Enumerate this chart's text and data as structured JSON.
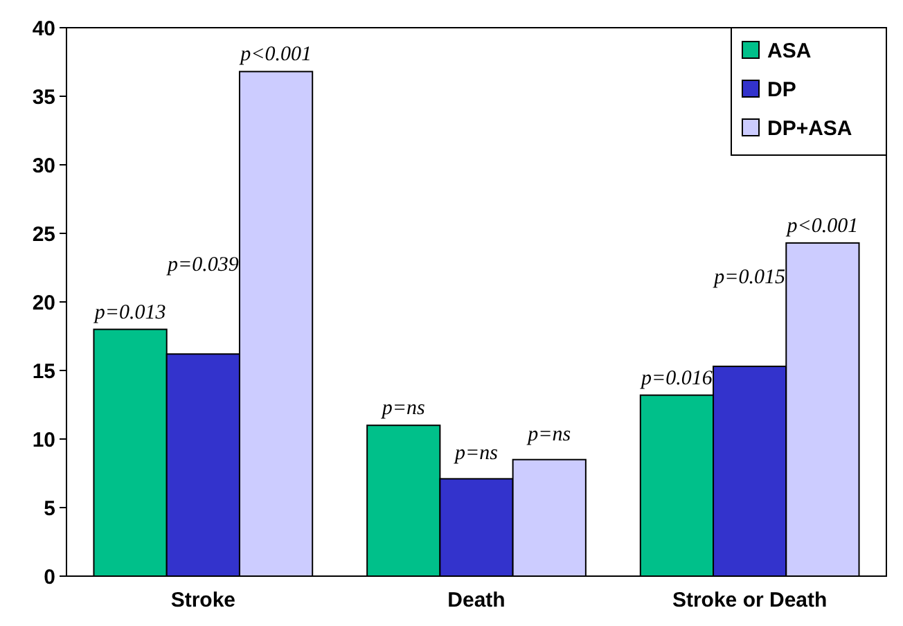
{
  "chart_data": {
    "type": "bar",
    "categories": [
      "Stroke",
      "Death",
      "Stroke or Death"
    ],
    "series": [
      {
        "name": "ASA",
        "color": "#00c08a",
        "values": [
          18,
          11,
          13.2
        ]
      },
      {
        "name": "DP",
        "color": "#3333cc",
        "values": [
          16.2,
          7.1,
          15.3
        ]
      },
      {
        "name": "DP+ASA",
        "color": "#ccccff",
        "values": [
          36.8,
          8.5,
          24.3
        ]
      }
    ],
    "ylim": [
      0,
      40
    ],
    "yticks": [
      0,
      5,
      10,
      15,
      20,
      25,
      30,
      35,
      40
    ],
    "grid": false,
    "legend": "top right",
    "annotations": [
      "p=0.013",
      "p=0.039",
      "p<0.001",
      "p=ns",
      "p=ns",
      "p=ns",
      "p=0.016",
      "p=0.015",
      "p<0.001"
    ]
  }
}
